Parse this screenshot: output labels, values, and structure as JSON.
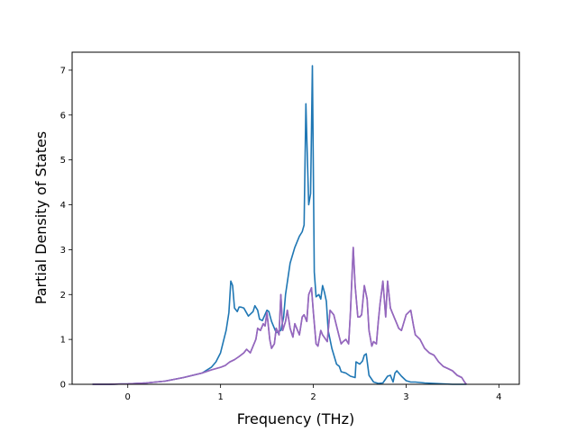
{
  "chart_data": {
    "type": "line",
    "title": "",
    "xlabel": "Frequency (THz)",
    "ylabel": "Partial Density of States",
    "xlim": [
      -0.6,
      4.22
    ],
    "ylim": [
      0,
      7.4
    ],
    "xticks": [
      0,
      1,
      2,
      3,
      4
    ],
    "yticks": [
      0,
      1,
      2,
      3,
      4,
      5,
      6,
      7
    ],
    "grid": false,
    "legend": "none",
    "series": [
      {
        "color": "#1f77b4",
        "x": [
          -0.38,
          -0.2,
          0.0,
          0.2,
          0.4,
          0.6,
          0.8,
          0.9,
          0.95,
          1.0,
          1.03,
          1.06,
          1.09,
          1.11,
          1.13,
          1.15,
          1.18,
          1.2,
          1.22,
          1.25,
          1.3,
          1.35,
          1.37,
          1.4,
          1.42,
          1.45,
          1.5,
          1.52,
          1.55,
          1.6,
          1.65,
          1.68,
          1.7,
          1.75,
          1.8,
          1.85,
          1.88,
          1.9,
          1.92,
          1.93,
          1.95,
          1.97,
          1.99,
          2.01,
          2.03,
          2.06,
          2.08,
          2.1,
          2.12,
          2.14,
          2.16,
          2.2,
          2.25,
          2.28,
          2.3,
          2.35,
          2.4,
          2.45,
          2.46,
          2.5,
          2.53,
          2.55,
          2.57,
          2.6,
          2.65,
          2.7,
          2.75,
          2.8,
          2.83,
          2.86,
          2.88,
          2.9,
          2.95,
          3.0,
          3.05,
          3.1,
          3.2,
          3.3,
          3.4,
          3.5,
          3.6,
          3.65
        ],
        "y": [
          0,
          0,
          0.01,
          0.03,
          0.07,
          0.15,
          0.25,
          0.38,
          0.5,
          0.7,
          0.95,
          1.2,
          1.6,
          2.3,
          2.2,
          1.7,
          1.62,
          1.72,
          1.72,
          1.7,
          1.52,
          1.62,
          1.75,
          1.65,
          1.45,
          1.42,
          1.65,
          1.62,
          1.4,
          1.15,
          1.2,
          1.5,
          2.0,
          2.7,
          3.05,
          3.3,
          3.4,
          3.55,
          6.25,
          5.5,
          4.0,
          4.25,
          7.1,
          2.5,
          1.95,
          2.0,
          1.9,
          2.2,
          2.05,
          1.85,
          1.2,
          0.8,
          0.45,
          0.4,
          0.28,
          0.25,
          0.18,
          0.15,
          0.5,
          0.45,
          0.52,
          0.65,
          0.68,
          0.2,
          0.05,
          0.02,
          0.03,
          0.18,
          0.2,
          0.05,
          0.25,
          0.3,
          0.18,
          0.08,
          0.05,
          0.05,
          0.03,
          0.02,
          0.01,
          0.0,
          0.0,
          0.0
        ]
      },
      {
        "color": "#9467bd",
        "x": [
          -0.38,
          -0.2,
          0.0,
          0.2,
          0.4,
          0.6,
          0.8,
          0.9,
          1.0,
          1.05,
          1.1,
          1.15,
          1.2,
          1.25,
          1.28,
          1.32,
          1.35,
          1.38,
          1.4,
          1.43,
          1.46,
          1.48,
          1.5,
          1.53,
          1.55,
          1.58,
          1.6,
          1.63,
          1.65,
          1.67,
          1.7,
          1.72,
          1.75,
          1.78,
          1.8,
          1.83,
          1.85,
          1.88,
          1.9,
          1.93,
          1.95,
          1.98,
          2.0,
          2.03,
          2.05,
          2.08,
          2.1,
          2.15,
          2.18,
          2.22,
          2.25,
          2.28,
          2.3,
          2.32,
          2.35,
          2.38,
          2.4,
          2.43,
          2.45,
          2.48,
          2.5,
          2.52,
          2.55,
          2.58,
          2.6,
          2.63,
          2.65,
          2.68,
          2.7,
          2.72,
          2.75,
          2.78,
          2.8,
          2.83,
          2.85,
          2.88,
          2.9,
          2.92,
          2.95,
          3.0,
          3.05,
          3.08,
          3.1,
          3.15,
          3.2,
          3.25,
          3.3,
          3.35,
          3.4,
          3.45,
          3.5,
          3.55,
          3.6,
          3.63,
          3.65
        ],
        "y": [
          0,
          0,
          0.01,
          0.03,
          0.07,
          0.15,
          0.25,
          0.32,
          0.38,
          0.42,
          0.5,
          0.55,
          0.62,
          0.7,
          0.78,
          0.7,
          0.85,
          1.0,
          1.25,
          1.2,
          1.35,
          1.3,
          1.6,
          1.0,
          0.8,
          0.9,
          1.25,
          1.1,
          2.0,
          1.2,
          1.4,
          1.65,
          1.25,
          1.05,
          1.35,
          1.2,
          1.1,
          1.5,
          1.55,
          1.4,
          2.0,
          2.15,
          1.6,
          0.9,
          0.85,
          1.2,
          1.1,
          0.95,
          1.65,
          1.55,
          1.3,
          1.05,
          0.9,
          0.95,
          1.0,
          0.9,
          1.6,
          3.05,
          2.2,
          1.5,
          1.5,
          1.55,
          2.2,
          1.9,
          1.2,
          0.85,
          0.95,
          0.9,
          1.4,
          1.8,
          2.3,
          1.5,
          2.3,
          1.7,
          1.6,
          1.45,
          1.35,
          1.25,
          1.2,
          1.55,
          1.65,
          1.3,
          1.1,
          1.0,
          0.8,
          0.7,
          0.65,
          0.5,
          0.4,
          0.35,
          0.3,
          0.2,
          0.15,
          0.05,
          0.0
        ]
      },
      {
        "color": "#9467bd",
        "x": [
          -0.38,
          -0.2,
          0.0,
          0.2,
          0.4,
          0.6,
          0.8,
          0.9,
          1.0,
          1.05,
          1.1,
          1.15,
          1.2,
          1.25,
          1.28,
          1.32,
          1.35,
          1.38,
          1.4,
          1.43,
          1.46,
          1.48,
          1.5,
          1.53,
          1.55,
          1.58,
          1.6,
          1.63,
          1.65,
          1.67,
          1.7,
          1.72,
          1.75,
          1.78,
          1.8,
          1.83,
          1.85,
          1.88,
          1.9,
          1.93,
          1.95,
          1.98,
          2.0,
          2.03,
          2.05,
          2.08,
          2.1,
          2.15,
          2.18,
          2.22,
          2.25,
          2.28,
          2.3,
          2.32,
          2.35,
          2.38,
          2.4,
          2.43,
          2.45,
          2.48,
          2.5,
          2.52,
          2.55,
          2.58,
          2.6,
          2.63,
          2.65,
          2.68,
          2.7,
          2.72,
          2.75,
          2.78,
          2.8,
          2.83,
          2.85,
          2.88,
          2.9,
          2.92,
          2.95,
          3.0,
          3.05,
          3.08,
          3.1,
          3.15,
          3.2,
          3.25,
          3.3,
          3.35,
          3.4,
          3.45,
          3.5,
          3.55,
          3.6,
          3.63,
          3.65
        ],
        "y": [
          0,
          0,
          0.01,
          0.03,
          0.07,
          0.15,
          0.25,
          0.32,
          0.38,
          0.42,
          0.5,
          0.55,
          0.62,
          0.7,
          0.78,
          0.7,
          0.85,
          1.0,
          1.25,
          1.2,
          1.35,
          1.3,
          1.6,
          1.0,
          0.8,
          0.9,
          1.25,
          1.1,
          2.0,
          1.2,
          1.4,
          1.65,
          1.25,
          1.05,
          1.35,
          1.2,
          1.1,
          1.5,
          1.55,
          1.4,
          2.0,
          2.15,
          1.6,
          0.9,
          0.85,
          1.2,
          1.1,
          0.95,
          1.65,
          1.55,
          1.3,
          1.05,
          0.9,
          0.95,
          1.0,
          0.9,
          1.6,
          3.05,
          2.2,
          1.5,
          1.5,
          1.55,
          2.2,
          1.9,
          1.2,
          0.85,
          0.95,
          0.9,
          1.4,
          1.8,
          2.3,
          1.5,
          2.3,
          1.7,
          1.6,
          1.45,
          1.35,
          1.25,
          1.2,
          1.55,
          1.65,
          1.3,
          1.1,
          1.0,
          0.8,
          0.7,
          0.65,
          0.5,
          0.4,
          0.35,
          0.3,
          0.2,
          0.15,
          0.05,
          0.0
        ]
      }
    ]
  }
}
